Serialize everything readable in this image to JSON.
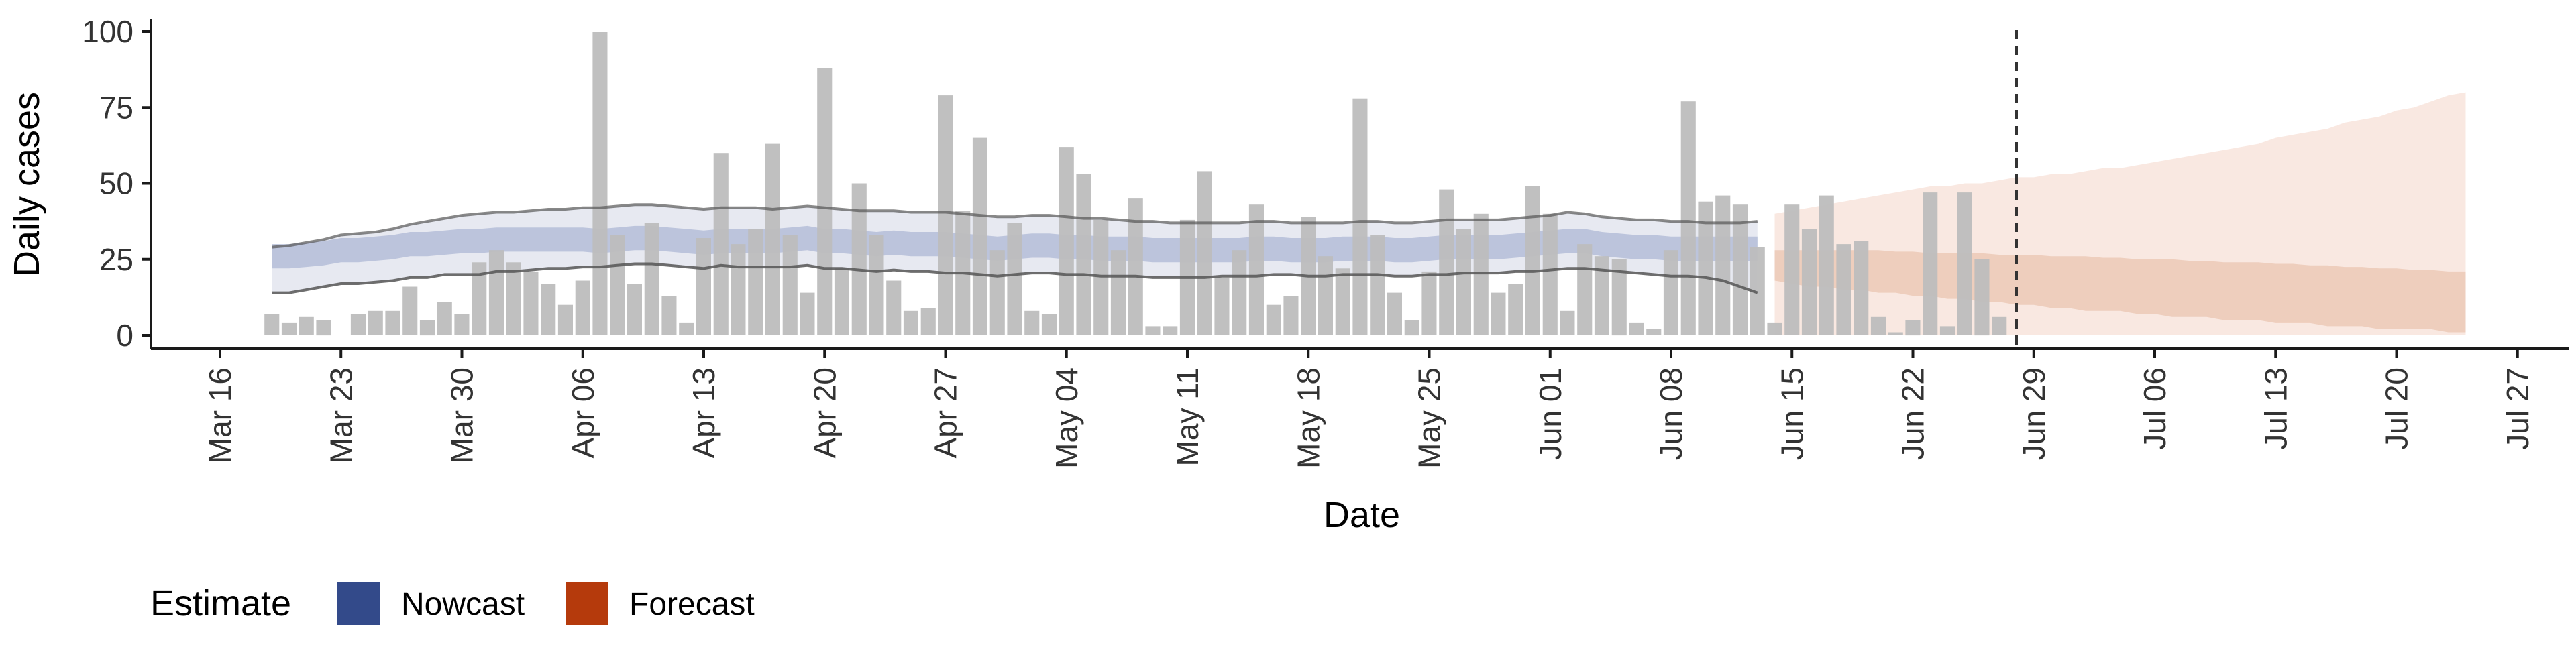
{
  "chart_data": {
    "type": "bar",
    "xlabel": "Date",
    "ylabel": "Daily cases",
    "ylim": [
      0,
      104
    ],
    "xlim": [
      "2020-03-12",
      "2020-07-30"
    ],
    "y_ticks": [
      0,
      25,
      50,
      75,
      100
    ],
    "x_ticks": [
      {
        "date": "2020-03-16",
        "label": "Mar 16"
      },
      {
        "date": "2020-03-23",
        "label": "Mar 23"
      },
      {
        "date": "2020-03-30",
        "label": "Mar 30"
      },
      {
        "date": "2020-04-06",
        "label": "Apr 06"
      },
      {
        "date": "2020-04-13",
        "label": "Apr 13"
      },
      {
        "date": "2020-04-20",
        "label": "Apr 20"
      },
      {
        "date": "2020-04-27",
        "label": "Apr 27"
      },
      {
        "date": "2020-05-04",
        "label": "May 04"
      },
      {
        "date": "2020-05-11",
        "label": "May 11"
      },
      {
        "date": "2020-05-18",
        "label": "May 18"
      },
      {
        "date": "2020-05-25",
        "label": "May 25"
      },
      {
        "date": "2020-06-01",
        "label": "Jun 01"
      },
      {
        "date": "2020-06-08",
        "label": "Jun 08"
      },
      {
        "date": "2020-06-15",
        "label": "Jun 15"
      },
      {
        "date": "2020-06-22",
        "label": "Jun 22"
      },
      {
        "date": "2020-06-29",
        "label": "Jun 29"
      },
      {
        "date": "2020-07-06",
        "label": "Jul 06"
      },
      {
        "date": "2020-07-13",
        "label": "Jul 13"
      },
      {
        "date": "2020-07-20",
        "label": "Jul 20"
      },
      {
        "date": "2020-07-27",
        "label": "Jul 27"
      }
    ],
    "cases": {
      "start_date": "2020-03-19",
      "values": [
        7,
        4,
        6,
        5,
        0,
        7,
        8,
        8,
        16,
        5,
        11,
        7,
        24,
        28,
        24,
        21,
        17,
        10,
        18,
        100,
        33,
        17,
        37,
        13,
        4,
        32,
        60,
        30,
        35,
        63,
        33,
        14,
        88,
        22,
        50,
        33,
        18,
        8,
        9,
        79,
        41,
        65,
        28,
        37,
        8,
        7,
        62,
        53,
        38,
        28,
        45,
        3,
        3,
        38,
        54,
        19,
        28,
        43,
        10,
        13,
        39,
        26,
        22,
        78,
        33,
        14,
        5,
        21,
        48,
        35,
        40,
        14,
        17,
        49,
        40,
        8,
        30,
        26,
        25,
        4,
        2,
        28,
        77,
        44,
        46,
        43,
        29,
        4,
        43,
        35,
        46,
        30,
        31,
        6,
        1,
        5,
        47,
        3,
        47,
        25,
        6
      ]
    },
    "nowcast": {
      "start_date": "2020-03-19",
      "end_date": "2020-06-13",
      "median": [
        26,
        26,
        26.5,
        27,
        28,
        28,
        28.5,
        29,
        30,
        30,
        30.5,
        31,
        31,
        31.5,
        31.5,
        31.5,
        31.5,
        31.5,
        31.5,
        31,
        31.5,
        32,
        32,
        31.5,
        31,
        30.5,
        31,
        31,
        31,
        31,
        31.5,
        32,
        31,
        31,
        30.5,
        30,
        30.5,
        30,
        30,
        30,
        29.5,
        29,
        28.5,
        29,
        29.5,
        29.5,
        29,
        29,
        28.5,
        28.5,
        28.5,
        28,
        28,
        28,
        28,
        28,
        28,
        28.5,
        28.5,
        28,
        28,
        28,
        28.5,
        28.5,
        28.5,
        28,
        28,
        28.5,
        29,
        29,
        29,
        29,
        29.5,
        30,
        30.5,
        31,
        31,
        30,
        29.5,
        29,
        29,
        28.5,
        28.5,
        28.5,
        28.5,
        28.5,
        28.5
      ],
      "inner_band": {
        "low": [
          22,
          22,
          22.5,
          23,
          24,
          24,
          24.5,
          25,
          26,
          26,
          26.5,
          27,
          27,
          27.5,
          27.5,
          27.5,
          27.5,
          27.5,
          27.5,
          27,
          27.5,
          28,
          28,
          27.5,
          27,
          26.5,
          27,
          27,
          27,
          27,
          27.5,
          28,
          27,
          27,
          26.5,
          26,
          26.5,
          26,
          26,
          26,
          25.5,
          25,
          24.5,
          25,
          25.5,
          25.5,
          25,
          25,
          24.5,
          24.5,
          24.5,
          24,
          24,
          24,
          24,
          24,
          24,
          24.5,
          24.5,
          24,
          24,
          24,
          24.5,
          24.5,
          24.5,
          24,
          24,
          24.5,
          25,
          25,
          25,
          25,
          25.5,
          26,
          26.5,
          27,
          27,
          26,
          25.5,
          25,
          25,
          24.5,
          24.5,
          24.5,
          24.5,
          24.5,
          24.5
        ],
        "high": [
          30,
          30,
          30.5,
          31,
          32,
          32,
          32.5,
          33,
          34,
          34,
          34.5,
          35,
          35,
          35.5,
          35.5,
          35.5,
          35.5,
          35.5,
          35.5,
          35,
          35.5,
          36,
          36,
          35.5,
          35,
          34.5,
          35,
          35,
          35,
          35,
          35.5,
          36,
          35,
          35,
          34.5,
          34,
          34.5,
          34,
          34,
          34,
          33.5,
          33,
          32.5,
          33,
          33.5,
          33.5,
          33,
          33,
          32.5,
          32.5,
          32.5,
          32,
          32,
          32,
          32,
          32,
          32,
          32.5,
          32.5,
          32,
          32,
          32,
          32.5,
          32.5,
          32.5,
          32,
          32,
          32.5,
          33,
          33,
          33,
          33,
          33.5,
          34,
          34.5,
          35,
          35,
          34,
          33.5,
          33,
          33,
          32.5,
          32.5,
          32.5,
          32.5,
          32.5,
          32.5
        ]
      },
      "outer_band": {
        "low": [
          14,
          14,
          15,
          16,
          17,
          17,
          17.5,
          18,
          19,
          19,
          20,
          20,
          20,
          21,
          21,
          21.5,
          22,
          22,
          22.5,
          22.5,
          23,
          23.5,
          23.5,
          23,
          22.5,
          22,
          23,
          22.5,
          22.5,
          22.5,
          22.5,
          23,
          22,
          22,
          21.5,
          21,
          21.5,
          21,
          21,
          20.5,
          20.5,
          20,
          19.5,
          20,
          20.5,
          20.5,
          20,
          20,
          19.5,
          19.5,
          19.5,
          19,
          19,
          19,
          19,
          19.5,
          19.5,
          19.5,
          20,
          20,
          19.5,
          19.5,
          20,
          20,
          20,
          19.5,
          19.5,
          20,
          20,
          20.5,
          20.5,
          20.5,
          21,
          21,
          21.5,
          22,
          22,
          21.5,
          21,
          20.5,
          20,
          19.5,
          19.5,
          19,
          18,
          16,
          14
        ],
        "high": [
          29,
          29.5,
          30.5,
          31.5,
          33,
          33.5,
          34,
          35,
          36.5,
          37.5,
          38.5,
          39.5,
          40,
          40.5,
          40.5,
          41,
          41.5,
          41.5,
          42,
          42,
          42.5,
          43,
          43,
          42.5,
          42,
          41.5,
          42,
          42,
          42,
          41.5,
          42,
          42.5,
          42,
          41.5,
          41,
          41,
          41,
          40.5,
          40.5,
          40.5,
          40,
          39.5,
          39,
          39,
          39.5,
          39.5,
          39,
          38.5,
          38.5,
          38,
          37.5,
          37.5,
          37,
          37,
          37,
          37,
          37,
          37.5,
          37.5,
          37,
          37,
          37,
          37,
          37.5,
          37.5,
          37,
          37,
          37.5,
          38,
          38,
          38,
          38,
          38.5,
          39,
          39.5,
          40.5,
          40,
          39,
          38.5,
          38,
          38,
          37.5,
          37.5,
          37,
          37,
          37,
          37.5
        ]
      }
    },
    "forecast": {
      "start_date": "2020-06-14",
      "end_date": "2020-07-24",
      "median": [
        22,
        22,
        22,
        22,
        22,
        22,
        22,
        21.5,
        21.5,
        21.5,
        21.5,
        21,
        21,
        21,
        21,
        20.5,
        20.5,
        20.5,
        20.5,
        20,
        20,
        20,
        19.5,
        19.5,
        19.5,
        19.5,
        19,
        19,
        19,
        19,
        18.5,
        18.5,
        18.5,
        18.5,
        18.5,
        18,
        18,
        18,
        18,
        18,
        18
      ],
      "inner_band": {
        "low": [
          18,
          17,
          16,
          16,
          15,
          15,
          14,
          14,
          13,
          13,
          12,
          12,
          11,
          11,
          10,
          10,
          9,
          9,
          8,
          8,
          8,
          7,
          7,
          6,
          6,
          6,
          5,
          5,
          5,
          4,
          4,
          4,
          3,
          3,
          3,
          2,
          2,
          2,
          2,
          1,
          1
        ],
        "high": [
          28,
          28,
          28,
          28,
          28,
          28,
          28,
          27.5,
          27.5,
          27,
          27,
          27,
          27,
          26.5,
          26.5,
          26.5,
          26,
          26,
          26,
          25.5,
          25.5,
          25,
          25,
          25,
          24.5,
          24.5,
          24,
          24,
          24,
          23.5,
          23.5,
          23,
          23,
          22.5,
          22.5,
          22,
          22,
          21.5,
          21.5,
          21,
          21
        ]
      },
      "outer_band": {
        "low": [
          0,
          0,
          0,
          0,
          0,
          0,
          0,
          0,
          0,
          0,
          0,
          0,
          0,
          0,
          0,
          0,
          0,
          0,
          0,
          0,
          0,
          0,
          0,
          0,
          0,
          0,
          0,
          0,
          0,
          0,
          0,
          0,
          0,
          0,
          0,
          0,
          0,
          0,
          0,
          0,
          0
        ],
        "high": [
          40,
          41,
          42,
          43,
          44,
          45,
          46,
          47,
          48,
          49,
          49,
          50,
          50,
          51,
          52,
          52,
          53,
          53,
          54,
          55,
          55,
          56,
          57,
          58,
          59,
          60,
          61,
          62,
          63,
          65,
          66,
          67,
          68,
          70,
          71,
          72,
          74,
          75,
          77,
          79,
          80
        ]
      }
    },
    "vertical_line_date": "2020-06-28",
    "legend": {
      "title": "Estimate",
      "position": "bottom-left",
      "entries": [
        {
          "label": "Nowcast",
          "color": "#334a8a"
        },
        {
          "label": "Forecast",
          "color": "#b53a0c"
        }
      ]
    },
    "colors": {
      "bars": "#bdbdbd",
      "nowcast_outer": "#e4e7f0",
      "nowcast_inner": "#b7c0d9",
      "nowcast_lines": "#555555",
      "forecast_outer": "#f8e6de",
      "forecast_inner": "#ecc9b6",
      "axis": "#1a1a1a",
      "vline": "#333333"
    },
    "grid": false
  }
}
